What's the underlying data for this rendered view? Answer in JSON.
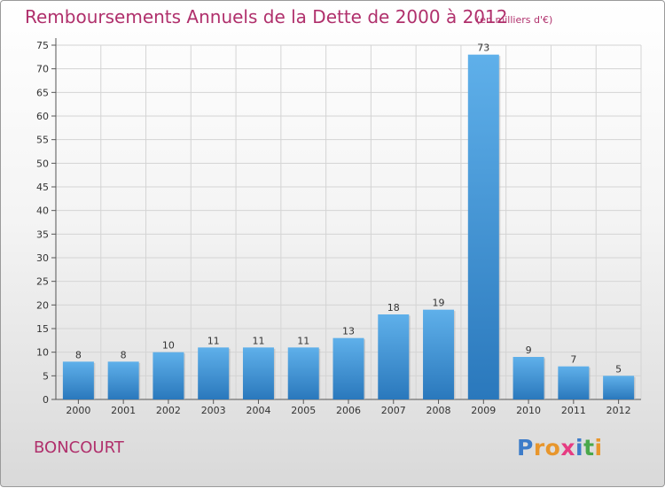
{
  "title": "Remboursements Annuels de la Dette de 2000 à 2012",
  "unit": "(en milliers d'€)",
  "commune": "BONCOURT",
  "logo": {
    "letters": [
      "P",
      "r",
      "o",
      "x",
      "i",
      "t",
      "i"
    ],
    "colors": [
      "#3d7cc9",
      "#e8962c",
      "#e8962c",
      "#e63c82",
      "#3d7cc9",
      "#4aa84a",
      "#e8962c"
    ]
  },
  "chart_data": {
    "type": "bar",
    "title": "Remboursements Annuels de la Dette de 2000 à 2012",
    "xlabel": "",
    "ylabel": "",
    "categories": [
      "2000",
      "2001",
      "2002",
      "2003",
      "2004",
      "2005",
      "2006",
      "2007",
      "2008",
      "2009",
      "2010",
      "2011",
      "2012"
    ],
    "values": [
      8,
      8,
      10,
      11,
      11,
      11,
      13,
      18,
      19,
      73,
      9,
      7,
      5
    ],
    "ylim": [
      0,
      75
    ],
    "yticks": [
      0,
      5,
      10,
      15,
      20,
      25,
      30,
      35,
      40,
      45,
      50,
      55,
      60,
      65,
      70,
      75
    ],
    "grid": true,
    "bar_color": "#3a8fd4"
  }
}
